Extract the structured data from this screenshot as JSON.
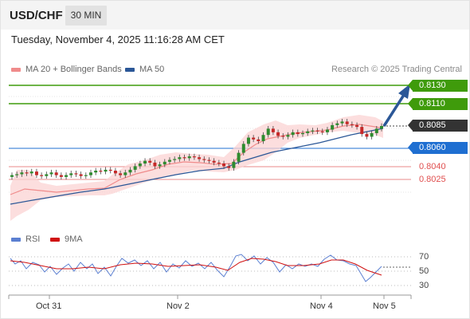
{
  "header": {
    "symbol": "USD/CHF",
    "timeframe": "30 MIN"
  },
  "datetime": "Tuesday, November 4, 2025 11:16:28 AM CET",
  "legend": {
    "ma20": {
      "label": "MA 20 + Bollinger Bands",
      "color": "#f08b8b"
    },
    "ma50": {
      "label": "MA 50",
      "color": "#2b5797"
    }
  },
  "credit": "Research © 2025 Trading Central",
  "levels": {
    "r2": {
      "label": "0.8130",
      "color": "#3f9b0b"
    },
    "r1": {
      "label": "0.8110",
      "color": "#3f9b0b"
    },
    "current": {
      "label": "0.8085",
      "color": "#333333"
    },
    "pivot": {
      "label": "0.8060",
      "color": "#1f6fd1"
    },
    "s1": {
      "label": "0.8040",
      "color": "#e04f4f"
    },
    "s2": {
      "label": "0.8025",
      "color": "#e04f4f"
    }
  },
  "rsi_legend": {
    "rsi": {
      "label": "RSI",
      "color": "#5b7fd1"
    },
    "ma9": {
      "label": "9MA",
      "color": "#d01010"
    }
  },
  "rsi_levels": [
    "70",
    "50",
    "30"
  ],
  "x_axis": [
    "Oct 31",
    "Nov 2",
    "Nov 4",
    "Nov 5"
  ],
  "chart_data": [
    {
      "type": "candlestick",
      "title": "USD/CHF 30 MIN",
      "y_levels": [
        0.813,
        0.811,
        0.8085,
        0.806,
        0.804,
        0.8025
      ],
      "last_price": 0.8085,
      "close_series": [
        0.803,
        0.8031,
        0.8033,
        0.8032,
        0.8034,
        0.803,
        0.8029,
        0.8031,
        0.8033,
        0.803,
        0.8028,
        0.803,
        0.8032,
        0.8031,
        0.8029,
        0.803,
        0.8033,
        0.8035,
        0.8034,
        0.8036,
        0.8035,
        0.8032,
        0.803,
        0.8033,
        0.8036,
        0.804,
        0.8043,
        0.8046,
        0.8044,
        0.804,
        0.8042,
        0.8045,
        0.8047,
        0.8048,
        0.805,
        0.8049,
        0.8051,
        0.805,
        0.8048,
        0.8047,
        0.8046,
        0.8044,
        0.8043,
        0.804,
        0.8038,
        0.8045,
        0.8055,
        0.8065,
        0.8072,
        0.807,
        0.8068,
        0.8075,
        0.8082,
        0.8078,
        0.8074,
        0.8073,
        0.8075,
        0.8078,
        0.8076,
        0.8077,
        0.8079,
        0.808,
        0.8079,
        0.8078,
        0.8081,
        0.8086,
        0.8088,
        0.809,
        0.8087,
        0.8086,
        0.8084,
        0.8076,
        0.8073,
        0.8077,
        0.8082,
        0.8085
      ],
      "x_ticks": [
        "Oct 31",
        "Nov 2",
        "Nov 4",
        "Nov 5"
      ],
      "forecast": {
        "from": 0.8085,
        "to": 0.813
      }
    },
    {
      "type": "line",
      "title": "RSI",
      "y_ticks": [
        70,
        50,
        30
      ],
      "series": [
        {
          "name": "RSI"
        },
        {
          "name": "9MA"
        }
      ]
    }
  ]
}
